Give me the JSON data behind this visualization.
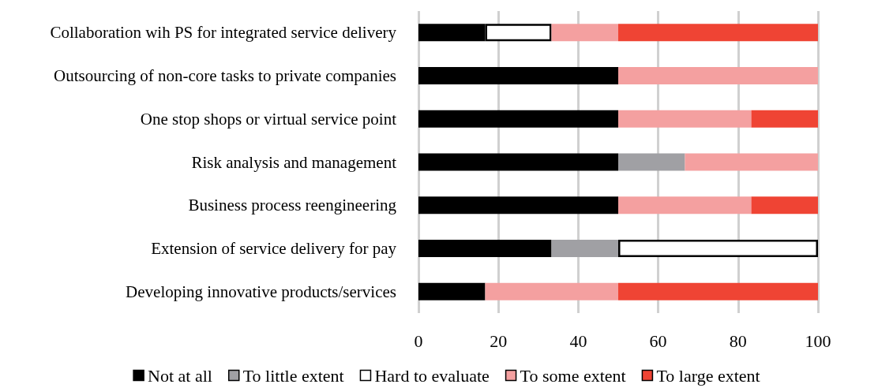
{
  "chart_data": {
    "type": "bar",
    "orientation": "horizontal",
    "stacked": true,
    "categories": [
      "Collaboration wih PS for integrated service delivery",
      "Outsourcing of non-core tasks to private companies",
      "One stop shops or virtual service point",
      "Risk analysis and management",
      "Business process reengineering",
      "Extension of service delivery for pay",
      "Developing innovative products/services"
    ],
    "series": [
      {
        "name": "Not at all",
        "color": "#000000",
        "values": [
          16.7,
          50,
          50,
          50,
          50,
          33.3,
          16.7
        ]
      },
      {
        "name": "To little extent",
        "color": "#a0a0a4",
        "values": [
          0,
          0,
          0,
          16.7,
          0,
          16.7,
          0
        ]
      },
      {
        "name": "Hard to evaluate",
        "color": "#ffffff",
        "values": [
          16.6,
          0,
          0,
          0,
          0,
          50,
          0
        ]
      },
      {
        "name": "To some extent",
        "color": "#f4a0a0",
        "values": [
          16.7,
          50,
          33.3,
          33.3,
          33.3,
          0,
          33.3
        ]
      },
      {
        "name": "To large extent",
        "color": "#ef4434",
        "values": [
          50,
          0,
          16.7,
          0,
          16.7,
          0,
          50
        ]
      }
    ],
    "xlim": [
      0,
      100
    ],
    "xticks": [
      0,
      20,
      40,
      60,
      80,
      100
    ],
    "grid": "x",
    "legend": "bottom"
  }
}
